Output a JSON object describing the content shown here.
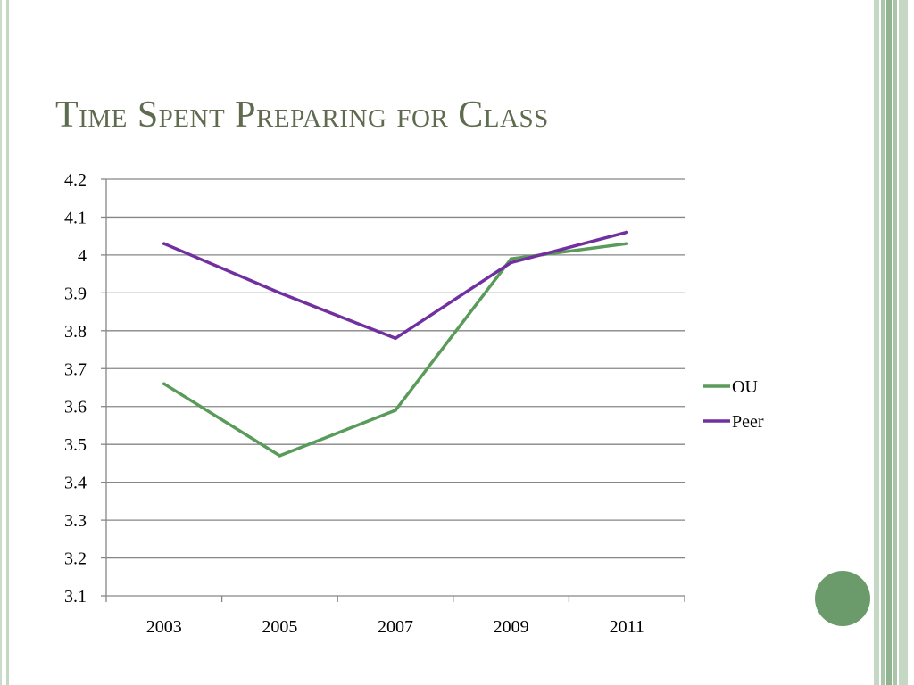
{
  "slide": {
    "title": "Time Spent Preparing for Class"
  },
  "theme": {
    "title_color": "#5f6b4f",
    "grid_color": "#868686",
    "decor_green": "#6b9a6b",
    "stripe_colors": [
      "#c4d8c4",
      "#a9c6a9",
      "#8fb48f",
      "#a9c6a9",
      "#c4d8c4"
    ]
  },
  "chart_data": {
    "type": "line",
    "title": "",
    "xlabel": "",
    "ylabel": "",
    "categories": [
      "2003",
      "2005",
      "2007",
      "2009",
      "2011"
    ],
    "ylim": [
      3.1,
      4.2
    ],
    "yticks": [
      "3.1",
      "3.2",
      "3.3",
      "3.4",
      "3.5",
      "3.6",
      "3.7",
      "3.8",
      "3.9",
      "4",
      "4.1",
      "4.2"
    ],
    "grid": true,
    "legend_position": "right",
    "series": [
      {
        "name": "OU",
        "color": "#5a9a5a",
        "values": [
          3.66,
          3.47,
          3.59,
          3.99,
          4.03
        ]
      },
      {
        "name": "Peer",
        "color": "#7030a0",
        "values": [
          4.03,
          3.9,
          3.78,
          3.98,
          4.06
        ]
      }
    ]
  }
}
